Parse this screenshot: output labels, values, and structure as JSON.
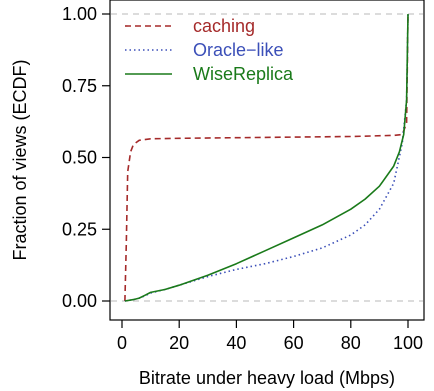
{
  "chart_data": {
    "type": "line",
    "title": "",
    "xlabel": "Bitrate under heavy load (Mbps)",
    "ylabel": "Fraction of views (ECDF)",
    "xlim": [
      0,
      100
    ],
    "ylim": [
      0,
      1
    ],
    "x_ticks": [
      0,
      20,
      40,
      60,
      80,
      100
    ],
    "y_ticks": [
      0.0,
      0.25,
      0.5,
      0.75,
      1.0
    ],
    "x_tick_labels": [
      "0",
      "20",
      "40",
      "60",
      "80",
      "100"
    ],
    "y_tick_labels": [
      "0.00",
      "0.25",
      "0.50",
      "0.75",
      "1.00"
    ],
    "reference_lines_y": [
      0,
      1
    ],
    "legend_position": "top-left",
    "series": [
      {
        "name": "caching",
        "color": "#a52a2a",
        "line_style": "dashed",
        "points": [
          [
            1,
            0.0
          ],
          [
            1.5,
            0.2
          ],
          [
            2,
            0.45
          ],
          [
            3,
            0.52
          ],
          [
            4,
            0.545
          ],
          [
            6,
            0.56
          ],
          [
            10,
            0.565
          ],
          [
            20,
            0.567
          ],
          [
            40,
            0.569
          ],
          [
            60,
            0.571
          ],
          [
            80,
            0.573
          ],
          [
            95,
            0.577
          ],
          [
            98,
            0.58
          ],
          [
            99.5,
            0.62
          ],
          [
            100,
            1.0
          ]
        ]
      },
      {
        "name": "Oracle−like",
        "color": "#3b4fb8",
        "line_style": "dotted",
        "points": [
          [
            1,
            0.0
          ],
          [
            4,
            0.005
          ],
          [
            6,
            0.01
          ],
          [
            8,
            0.018
          ],
          [
            10,
            0.028
          ],
          [
            15,
            0.04
          ],
          [
            20,
            0.055
          ],
          [
            30,
            0.085
          ],
          [
            40,
            0.11
          ],
          [
            50,
            0.13
          ],
          [
            60,
            0.155
          ],
          [
            70,
            0.185
          ],
          [
            80,
            0.23
          ],
          [
            85,
            0.265
          ],
          [
            90,
            0.32
          ],
          [
            95,
            0.41
          ],
          [
            98,
            0.55
          ],
          [
            99.5,
            0.7
          ],
          [
            100,
            1.0
          ]
        ]
      },
      {
        "name": "WiseReplica",
        "color": "#1a7a1a",
        "line_style": "solid",
        "points": [
          [
            1,
            0.0
          ],
          [
            4,
            0.005
          ],
          [
            6,
            0.01
          ],
          [
            8,
            0.02
          ],
          [
            10,
            0.03
          ],
          [
            15,
            0.04
          ],
          [
            20,
            0.055
          ],
          [
            30,
            0.09
          ],
          [
            40,
            0.13
          ],
          [
            50,
            0.175
          ],
          [
            60,
            0.22
          ],
          [
            70,
            0.265
          ],
          [
            80,
            0.32
          ],
          [
            85,
            0.355
          ],
          [
            90,
            0.4
          ],
          [
            95,
            0.47
          ],
          [
            97,
            0.52
          ],
          [
            98.5,
            0.58
          ],
          [
            99.5,
            0.7
          ],
          [
            100,
            1.0
          ]
        ]
      }
    ]
  }
}
